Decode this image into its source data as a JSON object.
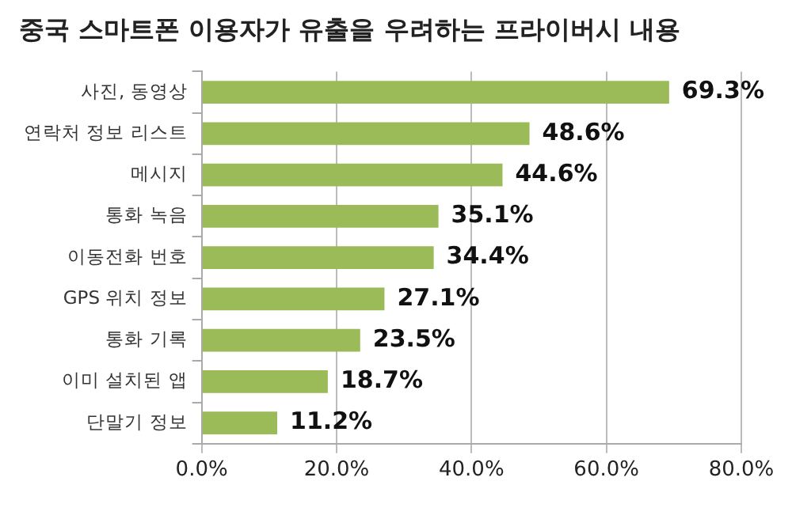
{
  "chart_data": {
    "type": "bar",
    "orientation": "horizontal",
    "title": "중국 스마트폰 이용자가 유출을 우려하는 프라이버시 내용",
    "categories": [
      "사진, 동영상",
      "연락처 정보 리스트",
      "메시지",
      "통화 녹음",
      "이동전화 번호",
      "GPS 위치 정보",
      "통화 기록",
      "이미 설치된 앱",
      "단말기 정보"
    ],
    "values": [
      69.3,
      48.6,
      44.6,
      35.1,
      34.4,
      27.1,
      23.5,
      18.7,
      11.2
    ],
    "value_labels": [
      "69.3%",
      "48.6%",
      "44.6%",
      "35.1%",
      "34.4%",
      "27.1%",
      "23.5%",
      "18.7%",
      "11.2%"
    ],
    "color": "#9bbb59",
    "xlim": [
      0,
      80
    ],
    "xticks": [
      {
        "value": 0,
        "label": "0.0%"
      },
      {
        "value": 20,
        "label": "20.0%"
      },
      {
        "value": 40,
        "label": "40.0%"
      },
      {
        "value": 60,
        "label": "60.0%"
      },
      {
        "value": 80,
        "label": "80.0%"
      }
    ],
    "grid": "x",
    "legend": false
  }
}
